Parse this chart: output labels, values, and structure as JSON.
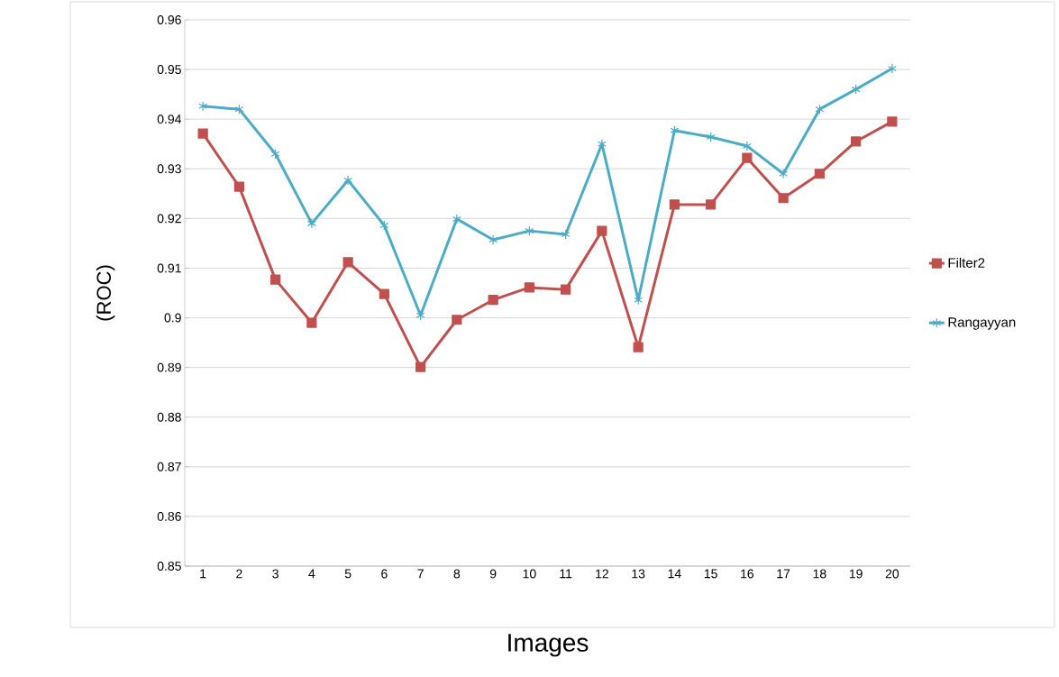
{
  "chart_data": {
    "type": "line",
    "xlabel": "Images",
    "ylabel": "(ROC)",
    "categories": [
      "1",
      "2",
      "3",
      "4",
      "5",
      "6",
      "7",
      "8",
      "9",
      "10",
      "11",
      "12",
      "13",
      "14",
      "15",
      "16",
      "17",
      "18",
      "19",
      "20"
    ],
    "series": [
      {
        "name": "Filter2",
        "color": "#c0504d",
        "marker": "square",
        "values": [
          0.9371,
          0.9264,
          0.9077,
          0.899,
          0.9112,
          0.9048,
          0.8901,
          0.8996,
          0.9036,
          0.9061,
          0.9057,
          0.9175,
          0.8941,
          0.9228,
          0.9228,
          0.9322,
          0.9241,
          0.929,
          0.9355,
          0.9395
        ]
      },
      {
        "name": "Rangayyan",
        "color": "#4bacc6",
        "marker": "cross",
        "values": [
          0.9426,
          0.942,
          0.933,
          0.919,
          0.9277,
          0.9186,
          0.9005,
          0.9199,
          0.9157,
          0.9175,
          0.9168,
          0.935,
          0.9036,
          0.9377,
          0.9364,
          0.9346,
          0.929,
          0.942,
          0.946,
          0.9502
        ]
      }
    ],
    "ylim": [
      0.85,
      0.96
    ],
    "yticks": [
      0.85,
      0.86,
      0.87,
      0.88,
      0.89,
      0.9,
      0.91,
      0.92,
      0.93,
      0.94,
      0.95,
      0.96
    ],
    "grid": "y",
    "legend": "right",
    "line_style": "solid"
  }
}
